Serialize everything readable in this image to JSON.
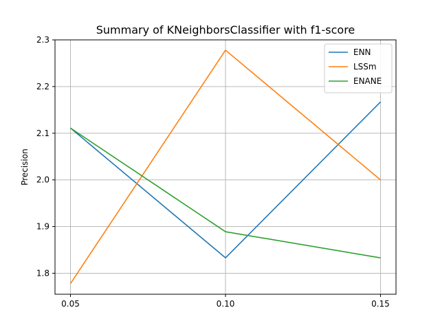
{
  "chart_data": {
    "type": "line",
    "title": "Summary of KNeighborsClassifier with f1-score",
    "xlabel": "",
    "ylabel": "Precision",
    "x": [
      0.05,
      0.1,
      0.15
    ],
    "x_tick_labels": [
      "0.05",
      "0.10",
      "0.15"
    ],
    "y_ticks": [
      1.8,
      1.9,
      2.0,
      2.1,
      2.2,
      2.3
    ],
    "y_tick_labels": [
      "1.8",
      "1.9",
      "2.0",
      "2.1",
      "2.2",
      "2.3"
    ],
    "xlim": [
      0.045,
      0.155
    ],
    "ylim": [
      1.755,
      2.3
    ],
    "grid": true,
    "legend_position": "top-right",
    "series": [
      {
        "name": "ENN",
        "color": "#1f77b4",
        "values": [
          2.111,
          1.833,
          2.167
        ]
      },
      {
        "name": "LSSm",
        "color": "#ff7f0e",
        "values": [
          1.778,
          2.278,
          2.0
        ]
      },
      {
        "name": "ENANE",
        "color": "#2ca02c",
        "values": [
          2.111,
          1.889,
          1.833
        ]
      }
    ]
  }
}
